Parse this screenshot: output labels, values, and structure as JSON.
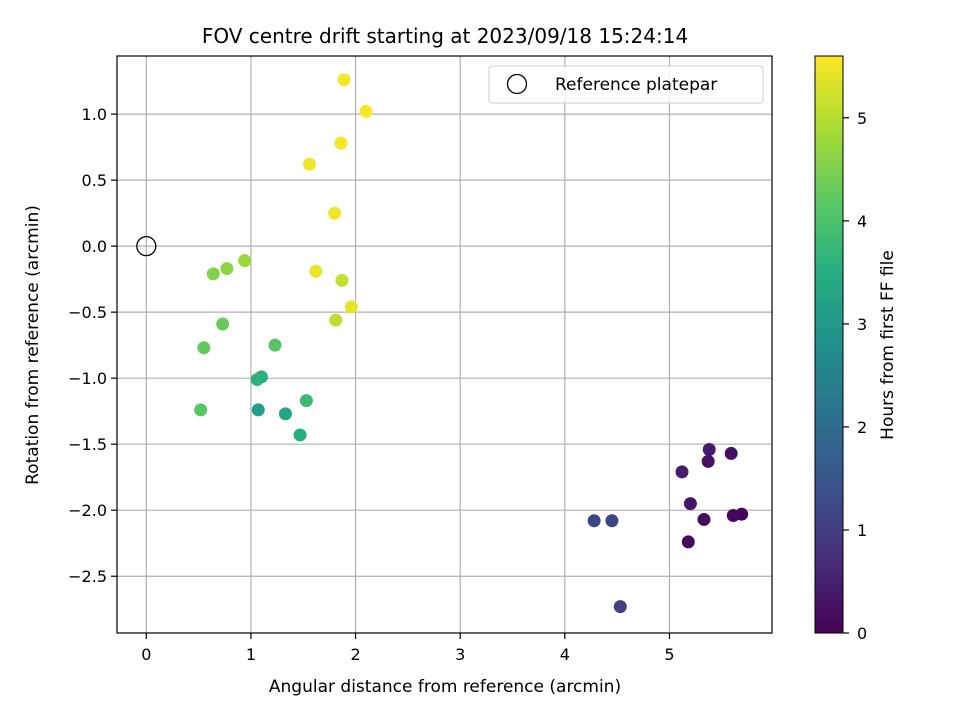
{
  "chart_data": {
    "type": "scatter",
    "title": "FOV centre drift starting at 2023/09/18 15:24:14",
    "xlabel": "Angular distance from reference (arcmin)",
    "ylabel": "Rotation from reference (arcmin)",
    "xlim": [
      -0.28,
      5.98
    ],
    "ylim": [
      -2.93,
      1.44
    ],
    "xticks": [
      0,
      1,
      2,
      3,
      4,
      5
    ],
    "xtick_labels": [
      "0",
      "1",
      "2",
      "3",
      "4",
      "5"
    ],
    "yticks": [
      -2.5,
      -2.0,
      -1.5,
      -1.0,
      -0.5,
      0.0,
      0.5,
      1.0
    ],
    "ytick_labels": [
      "−2.5",
      "−2.0",
      "−1.5",
      "−1.0",
      "−0.5",
      "0.0",
      "0.5",
      "1.0"
    ],
    "grid": true,
    "legend": {
      "position": "top-right",
      "entries": [
        "Reference platepar"
      ]
    },
    "reference_point": {
      "x": 0,
      "y": 0
    },
    "colorbar": {
      "label": "Hours from first FF file",
      "range": [
        0,
        5.6
      ],
      "ticks": [
        0,
        1,
        2,
        3,
        4,
        5
      ],
      "tick_labels": [
        "0",
        "1",
        "2",
        "3",
        "4",
        "5"
      ],
      "colormap": "viridis"
    },
    "points": [
      {
        "x": 5.69,
        "y": -2.03,
        "h": 0.05
      },
      {
        "x": 5.61,
        "y": -2.04,
        "h": 0.1
      },
      {
        "x": 5.18,
        "y": -2.24,
        "h": 0.15
      },
      {
        "x": 5.33,
        "y": -2.07,
        "h": 0.2
      },
      {
        "x": 5.59,
        "y": -1.57,
        "h": 0.25
      },
      {
        "x": 5.37,
        "y": -1.63,
        "h": 0.3
      },
      {
        "x": 5.2,
        "y": -1.95,
        "h": 0.35
      },
      {
        "x": 5.38,
        "y": -1.54,
        "h": 0.4
      },
      {
        "x": 5.12,
        "y": -1.71,
        "h": 0.45
      },
      {
        "x": 4.53,
        "y": -2.73,
        "h": 1.1
      },
      {
        "x": 4.28,
        "y": -2.08,
        "h": 1.15
      },
      {
        "x": 4.45,
        "y": -2.08,
        "h": 1.2
      },
      {
        "x": 1.07,
        "y": -1.24,
        "h": 3.1
      },
      {
        "x": 1.33,
        "y": -1.27,
        "h": 3.3
      },
      {
        "x": 1.47,
        "y": -1.43,
        "h": 3.5
      },
      {
        "x": 1.1,
        "y": -0.99,
        "h": 3.55
      },
      {
        "x": 1.06,
        "y": -1.01,
        "h": 3.6
      },
      {
        "x": 1.53,
        "y": -1.17,
        "h": 3.8
      },
      {
        "x": 1.23,
        "y": -0.75,
        "h": 4.1
      },
      {
        "x": 0.52,
        "y": -1.24,
        "h": 4.15
      },
      {
        "x": 0.55,
        "y": -0.77,
        "h": 4.25
      },
      {
        "x": 0.73,
        "y": -0.59,
        "h": 4.3
      },
      {
        "x": 0.64,
        "y": -0.21,
        "h": 4.55
      },
      {
        "x": 0.77,
        "y": -0.17,
        "h": 4.65
      },
      {
        "x": 0.94,
        "y": -0.11,
        "h": 4.75
      },
      {
        "x": 1.81,
        "y": -0.56,
        "h": 5.05
      },
      {
        "x": 1.87,
        "y": -0.26,
        "h": 5.1
      },
      {
        "x": 1.96,
        "y": -0.46,
        "h": 5.4
      },
      {
        "x": 1.62,
        "y": -0.19,
        "h": 5.45
      },
      {
        "x": 1.8,
        "y": 0.25,
        "h": 5.5
      },
      {
        "x": 1.56,
        "y": 0.62,
        "h": 5.5
      },
      {
        "x": 1.86,
        "y": 0.78,
        "h": 5.55
      },
      {
        "x": 1.89,
        "y": 1.26,
        "h": 5.55
      },
      {
        "x": 2.1,
        "y": 1.02,
        "h": 5.6
      }
    ]
  }
}
